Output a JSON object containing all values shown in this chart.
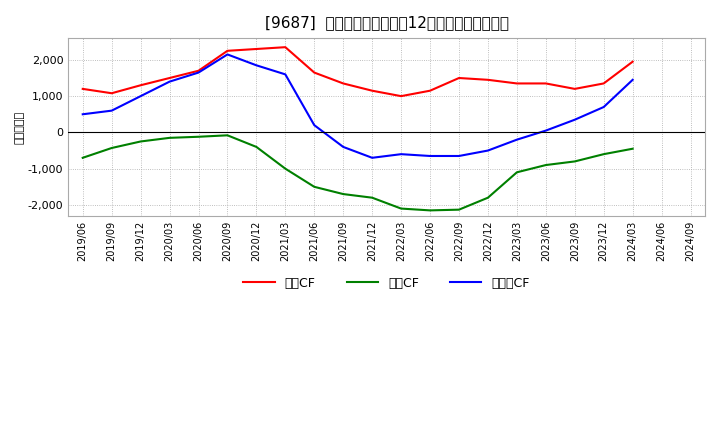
{
  "title": "[9687]  キャッシュフローの12か月移動合計の推移",
  "ylabel": "（百万円）",
  "background_color": "#ffffff",
  "grid_color": "#aaaaaa",
  "dates": [
    "2019/06",
    "2019/09",
    "2019/12",
    "2020/03",
    "2020/06",
    "2020/09",
    "2020/12",
    "2021/03",
    "2021/06",
    "2021/09",
    "2021/12",
    "2022/03",
    "2022/06",
    "2022/09",
    "2022/12",
    "2023/03",
    "2023/06",
    "2023/09",
    "2023/12",
    "2024/03",
    "2024/06",
    "2024/09"
  ],
  "eigyo_cf": [
    1200,
    1080,
    1300,
    1500,
    1700,
    2250,
    2300,
    2350,
    1650,
    1350,
    1150,
    1000,
    1150,
    1500,
    1450,
    1350,
    1350,
    1200,
    1350,
    1950,
    null,
    null
  ],
  "toshi_cf": [
    -700,
    -430,
    -250,
    -150,
    -120,
    -80,
    -400,
    -1000,
    -1500,
    -1700,
    -1800,
    -2100,
    -2150,
    -2130,
    -1800,
    -1100,
    -900,
    -800,
    -600,
    -450,
    null,
    null
  ],
  "free_cf": [
    500,
    600,
    1000,
    1400,
    1650,
    2150,
    1850,
    1600,
    200,
    -400,
    -700,
    -600,
    -650,
    -650,
    -500,
    -200,
    50,
    350,
    700,
    1450,
    null,
    null
  ],
  "eigyo_color": "#ff0000",
  "toshi_color": "#008000",
  "free_color": "#0000ff",
  "legend_labels": [
    "営業CF",
    "投資CF",
    "フリーCF"
  ],
  "ylim": [
    -2300,
    2600
  ],
  "yticks": [
    -2000,
    -1000,
    0,
    1000,
    2000
  ],
  "line_width": 1.5
}
